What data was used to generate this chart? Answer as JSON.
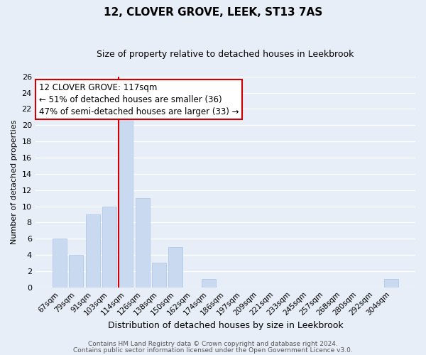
{
  "title": "12, CLOVER GROVE, LEEK, ST13 7AS",
  "subtitle": "Size of property relative to detached houses in Leekbrook",
  "xlabel": "Distribution of detached houses by size in Leekbrook",
  "ylabel": "Number of detached properties",
  "categories": [
    "67sqm",
    "79sqm",
    "91sqm",
    "103sqm",
    "114sqm",
    "126sqm",
    "138sqm",
    "150sqm",
    "162sqm",
    "174sqm",
    "186sqm",
    "197sqm",
    "209sqm",
    "221sqm",
    "233sqm",
    "245sqm",
    "257sqm",
    "268sqm",
    "280sqm",
    "292sqm",
    "304sqm"
  ],
  "values": [
    6,
    4,
    9,
    10,
    21,
    11,
    3,
    5,
    0,
    1,
    0,
    0,
    0,
    0,
    0,
    0,
    0,
    0,
    0,
    0,
    1
  ],
  "bar_color": "#c9d9f0",
  "bar_edge_color": "#aac4e8",
  "highlight_index": 4,
  "redline_color": "#cc0000",
  "ylim": [
    0,
    26
  ],
  "yticks": [
    0,
    2,
    4,
    6,
    8,
    10,
    12,
    14,
    16,
    18,
    20,
    22,
    24,
    26
  ],
  "annotation_title": "12 CLOVER GROVE: 117sqm",
  "annotation_line1": "← 51% of detached houses are smaller (36)",
  "annotation_line2": "47% of semi-detached houses are larger (33) →",
  "annotation_box_color": "#ffffff",
  "annotation_box_edge": "#cc0000",
  "footer1": "Contains HM Land Registry data © Crown copyright and database right 2024.",
  "footer2": "Contains public sector information licensed under the Open Government Licence v3.0.",
  "grid_color": "#ffffff",
  "bg_color": "#e8eef7",
  "title_fontsize": 11,
  "subtitle_fontsize": 9,
  "ylabel_fontsize": 8,
  "xlabel_fontsize": 9,
  "tick_fontsize": 8,
  "xtick_fontsize": 7.5,
  "footer_fontsize": 6.5,
  "annot_fontsize": 8.5
}
